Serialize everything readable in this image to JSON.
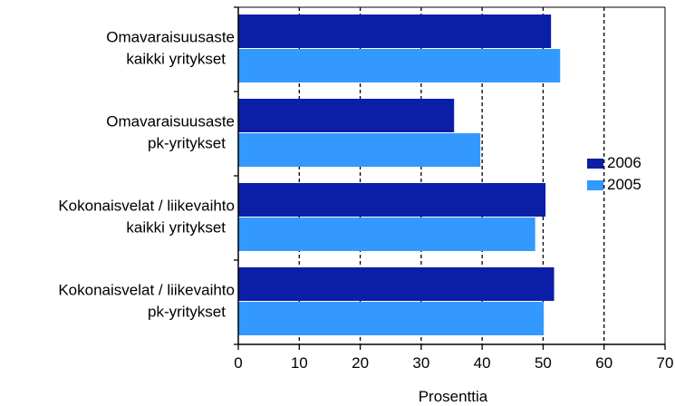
{
  "chart_data": {
    "type": "bar",
    "orientation": "horizontal",
    "categories": [
      [
        "Omavaraisuusaste",
        "kaikki yritykset"
      ],
      [
        "Omavaraisuusaste",
        "pk-yritykset"
      ],
      [
        "Kokonaisvelat / liikevaihto",
        "kaikki  yritykset"
      ],
      [
        "Kokonaisvelat / liikevaihto",
        "pk-yritykset"
      ]
    ],
    "series": [
      {
        "name": "2006",
        "values": [
          51.3,
          35.4,
          50.4,
          51.8
        ],
        "color": "#0b1ea8"
      },
      {
        "name": "2005",
        "values": [
          52.8,
          39.7,
          48.7,
          50.1
        ],
        "color": "#3399ff"
      }
    ],
    "xlabel": "Prosenttia",
    "xlim": [
      0,
      70
    ],
    "xticks": [
      "0",
      "10",
      "20",
      "30",
      "40",
      "50",
      "60",
      "70"
    ],
    "grid": "vertical dashed",
    "legend_position": "right"
  }
}
